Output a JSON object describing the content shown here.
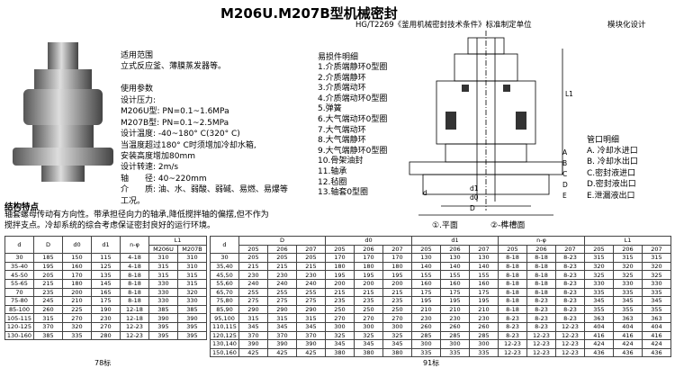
{
  "header": {
    "title": "M206U.M207B型机械密封",
    "subtitle": "HG/T2269《釜用机械密封技术条件》标准制定单位",
    "tag": "模块化设计"
  },
  "specs": {
    "scope_title": "适用范围",
    "scope": "立式反应釜、薄膜蒸发器等。",
    "params_title": "使用参数",
    "lines": [
      "设计压力:",
      "M206U型: PN=0.1~1.6MPa",
      "M207B型: PN=0.1~2.5MPa",
      "设计温度: -40~180° C(320° C)",
      "当温度超过180° C时须增加冷却水箱,",
      "安装高度增加80mm",
      "设计转速: 2m/s",
      "轴　　径: 40~220mm",
      "介　　质: 油、水、弱酸、弱碱、易燃、易爆等",
      "工况。"
    ]
  },
  "parts": {
    "title": "易损件明细",
    "items": [
      "1.介质端静环0型圈",
      "2.介质端静环",
      "3.介质端动环",
      "4.介质端动环0型圈",
      "5.弹簧",
      "6.大气端动环0型圈",
      "7.大气端动环",
      "8.大气端静环",
      "9.大气端静环0型圈",
      "10.骨架油封",
      "11.轴承",
      "12.毡圈",
      "13.轴套0型圈"
    ]
  },
  "pipes": {
    "title": "管口明细",
    "items": [
      "A. 冷却水进口",
      "B. 冷却水出口",
      "C.密封液进口",
      "D.密封液出口",
      "E.泄漏液出口"
    ]
  },
  "drawing": {
    "labels": [
      "L1",
      "d1",
      "d0",
      "D",
      "d",
      "A",
      "B",
      "C",
      "D",
      "E"
    ],
    "captions": [
      "①.平面",
      "②-榫槽面"
    ]
  },
  "structure": {
    "title": "结构特点",
    "text": [
      "轴套螺母传动有方向性。带承担径向力的轴承,降低搅拌轴的偏摆,但不作为",
      "搅拌支点。冷却系统的综合考虑保证密封良好的运行环境。"
    ]
  },
  "table1": {
    "header": [
      "d",
      "D",
      "d0",
      "d1",
      "n-φ",
      "L1"
    ],
    "sub": [
      "M206U",
      "M207B"
    ],
    "rows": [
      [
        "30",
        "185",
        "150",
        "115",
        "4-18",
        "310",
        "310"
      ],
      [
        "35-40",
        "195",
        "160",
        "125",
        "4-18",
        "315",
        "310"
      ],
      [
        "45-50",
        "205",
        "170",
        "135",
        "8-18",
        "315",
        "315"
      ],
      [
        "55-65",
        "215",
        "180",
        "145",
        "8-18",
        "330",
        "315"
      ],
      [
        "70",
        "235",
        "200",
        "165",
        "8-18",
        "330",
        "320"
      ],
      [
        "75-80",
        "245",
        "210",
        "175",
        "8-18",
        "330",
        "330"
      ],
      [
        "85-100",
        "260",
        "225",
        "190",
        "12-18",
        "385",
        "385"
      ],
      [
        "105-115",
        "315",
        "270",
        "230",
        "12-18",
        "390",
        "390"
      ],
      [
        "120-125",
        "370",
        "320",
        "270",
        "12-23",
        "395",
        "395"
      ],
      [
        "130-160",
        "385",
        "335",
        "280",
        "12-23",
        "395",
        "395"
      ]
    ],
    "caption": "78标"
  },
  "table2": {
    "header": [
      "d",
      "D",
      "d0",
      "d1",
      "n-φ",
      "L1"
    ],
    "sub": [
      "205",
      "206",
      "207"
    ],
    "rows": [
      [
        "30",
        "205",
        "205",
        "205",
        "170",
        "170",
        "170",
        "130",
        "130",
        "130",
        "8-18",
        "8-18",
        "8-23",
        "315",
        "315",
        "315"
      ],
      [
        "35,40",
        "215",
        "215",
        "215",
        "180",
        "180",
        "180",
        "140",
        "140",
        "140",
        "8-18",
        "8-18",
        "8-23",
        "320",
        "320",
        "320"
      ],
      [
        "45,50",
        "230",
        "230",
        "230",
        "195",
        "195",
        "195",
        "155",
        "155",
        "155",
        "8-18",
        "8-18",
        "8-23",
        "325",
        "325",
        "325"
      ],
      [
        "55,60",
        "240",
        "240",
        "240",
        "200",
        "200",
        "200",
        "160",
        "160",
        "160",
        "8-18",
        "8-18",
        "8-23",
        "330",
        "330",
        "330"
      ],
      [
        "65,70",
        "255",
        "255",
        "255",
        "215",
        "215",
        "215",
        "175",
        "175",
        "175",
        "8-18",
        "8-18",
        "8-23",
        "335",
        "335",
        "335"
      ],
      [
        "75,80",
        "275",
        "275",
        "275",
        "235",
        "235",
        "235",
        "195",
        "195",
        "195",
        "8-18",
        "8-23",
        "8-23",
        "345",
        "345",
        "345"
      ],
      [
        "85,90",
        "290",
        "290",
        "290",
        "250",
        "250",
        "250",
        "210",
        "210",
        "210",
        "8-18",
        "8-23",
        "8-23",
        "355",
        "355",
        "355"
      ],
      [
        "95,100",
        "315",
        "315",
        "315",
        "270",
        "270",
        "270",
        "230",
        "230",
        "230",
        "8-23",
        "8-23",
        "8-23",
        "363",
        "363",
        "363"
      ],
      [
        "110,115",
        "345",
        "345",
        "345",
        "300",
        "300",
        "300",
        "260",
        "260",
        "260",
        "8-23",
        "8-23",
        "12-23",
        "404",
        "404",
        "404"
      ],
      [
        "120,125",
        "370",
        "370",
        "370",
        "325",
        "325",
        "325",
        "285",
        "285",
        "285",
        "8-23",
        "12-23",
        "12-23",
        "416",
        "416",
        "416"
      ],
      [
        "130,140",
        "390",
        "390",
        "390",
        "345",
        "345",
        "345",
        "300",
        "300",
        "300",
        "12-23",
        "12-23",
        "12-23",
        "424",
        "424",
        "424"
      ],
      [
        "150,160",
        "425",
        "425",
        "425",
        "380",
        "380",
        "380",
        "335",
        "335",
        "335",
        "12-23",
        "12-23",
        "12-23",
        "436",
        "436",
        "436"
      ]
    ],
    "caption": "91标"
  }
}
